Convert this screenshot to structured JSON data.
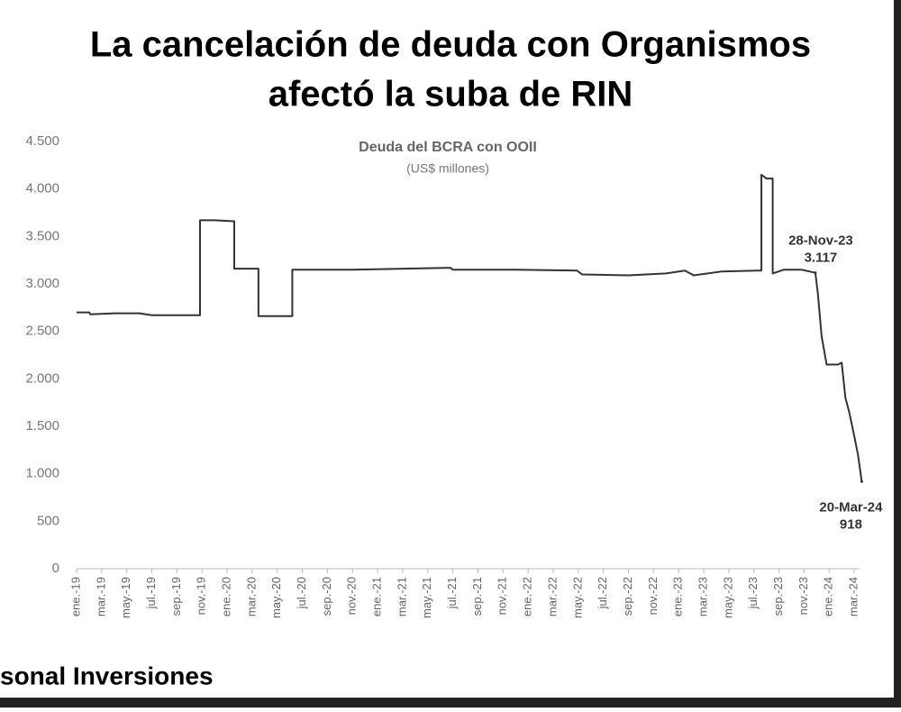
{
  "chart_data": {
    "type": "line",
    "title": [
      "La cancelación de deuda con Organismos",
      "afectó la suba de RIN"
    ],
    "subtitle": "Deuda del BCRA con OOII",
    "unit_label": "(US$ millones)",
    "footer": "sonal Inversiones",
    "color": "#333333",
    "x": [
      0,
      1,
      1.1,
      3,
      5,
      6,
      8,
      9.84,
      9.84,
      11,
      12.57,
      12.57,
      14.5,
      14.5,
      17.2,
      17.2,
      22,
      29.8,
      30,
      35,
      39.9,
      40.3,
      44,
      47,
      48.5,
      49.2,
      51.4,
      54.2,
      54.6,
      54.6,
      55,
      55.5,
      55.5,
      56.4,
      57.8,
      58.9,
      59.1,
      59.4,
      59.8,
      60.7,
      61,
      61.3,
      61.6,
      62,
      62.3,
      62.6
    ],
    "values": [
      2700,
      2700,
      2680,
      2690,
      2690,
      2670,
      2670,
      2670,
      3670,
      3670,
      3660,
      3160,
      3160,
      2660,
      2660,
      3150,
      3150,
      3170,
      3150,
      3150,
      3140,
      3100,
      3090,
      3110,
      3140,
      3090,
      3130,
      3140,
      3140,
      4150,
      4110,
      4110,
      3110,
      3150,
      3150,
      3117,
      2900,
      2450,
      2150,
      2150,
      2170,
      1800,
      1650,
      1400,
      1200,
      918
    ],
    "xlim": [
      0,
      63
    ],
    "xticks": [
      {
        "value": 0,
        "label": "ene.-19"
      },
      {
        "value": 2,
        "label": "mar.-19"
      },
      {
        "value": 4,
        "label": "may.-19"
      },
      {
        "value": 6,
        "label": "jul.-19"
      },
      {
        "value": 8,
        "label": "sep.-19"
      },
      {
        "value": 10,
        "label": "nov.-19"
      },
      {
        "value": 12,
        "label": "ene.-20"
      },
      {
        "value": 14,
        "label": "mar.-20"
      },
      {
        "value": 16,
        "label": "may.-20"
      },
      {
        "value": 18,
        "label": "jul.-20"
      },
      {
        "value": 20,
        "label": "sep.-20"
      },
      {
        "value": 22,
        "label": "nov.-20"
      },
      {
        "value": 24,
        "label": "ene.-21"
      },
      {
        "value": 26,
        "label": "mar.-21"
      },
      {
        "value": 28,
        "label": "may.-21"
      },
      {
        "value": 30,
        "label": "jul.-21"
      },
      {
        "value": 32,
        "label": "sep.-21"
      },
      {
        "value": 34,
        "label": "nov.-21"
      },
      {
        "value": 36,
        "label": "ene.-22"
      },
      {
        "value": 38,
        "label": "mar.-22"
      },
      {
        "value": 40,
        "label": "may.-22"
      },
      {
        "value": 42,
        "label": "jul.-22"
      },
      {
        "value": 44,
        "label": "sep.-22"
      },
      {
        "value": 46,
        "label": "nov.-22"
      },
      {
        "value": 48,
        "label": "ene.-23"
      },
      {
        "value": 50,
        "label": "mar.-23"
      },
      {
        "value": 52,
        "label": "may.-23"
      },
      {
        "value": 54,
        "label": "jul.-23"
      },
      {
        "value": 56,
        "label": "sep.-23"
      },
      {
        "value": 58,
        "label": "nov.-23"
      },
      {
        "value": 60,
        "label": "ene.-24"
      },
      {
        "value": 62,
        "label": "mar.-24"
      }
    ],
    "ylim": [
      0,
      4500
    ],
    "yticks": [
      0,
      500,
      {
        "value": 1000,
        "label": "1.000"
      },
      {
        "value": 1500,
        "label": "1.500"
      },
      {
        "value": 2000,
        "label": "2.000"
      },
      {
        "value": 2500,
        "label": "2.500"
      },
      {
        "value": 3000,
        "label": "3.000"
      },
      {
        "value": 3500,
        "label": "3.500"
      },
      {
        "value": 4000,
        "label": "4.000"
      },
      {
        "value": 4500,
        "label": "4.500"
      }
    ],
    "annotations": [
      {
        "label": "28-Nov-23",
        "x": 58.9,
        "value": 3117,
        "value_label": "3.117",
        "place": "above"
      },
      {
        "label": "20-Mar-24",
        "x": 62.6,
        "value": 918,
        "value_label": "918",
        "place": "below"
      }
    ]
  }
}
